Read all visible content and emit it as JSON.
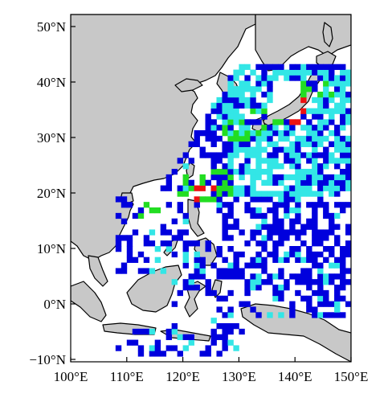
{
  "map": {
    "lon_range": [
      100,
      150
    ],
    "lat_range": [
      -10,
      53
    ],
    "grid_cell_deg": 1,
    "land_color": "#c8c8c8",
    "ocean_color": "#ffffff",
    "category_colors": {
      "blue": "#0000dd",
      "cyan": "#33e6e6",
      "green": "#22dd22",
      "red": "#ee1111"
    }
  },
  "axes": {
    "x_ticks": [
      {
        "value": 100,
        "label": "100°E"
      },
      {
        "value": 110,
        "label": "110°E"
      },
      {
        "value": 120,
        "label": "120°E"
      },
      {
        "value": 130,
        "label": "130°E"
      },
      {
        "value": 140,
        "label": "140°E"
      },
      {
        "value": 150,
        "label": "150°E"
      }
    ],
    "y_ticks": [
      {
        "value": 50,
        "label": "50°N"
      },
      {
        "value": 40,
        "label": "40°N"
      },
      {
        "value": 30,
        "label": "30°N"
      },
      {
        "value": 20,
        "label": "20°N"
      },
      {
        "value": 10,
        "label": "10°N"
      },
      {
        "value": 0,
        "label": "0°N"
      },
      {
        "value": -10,
        "label": "−10°N"
      }
    ]
  }
}
